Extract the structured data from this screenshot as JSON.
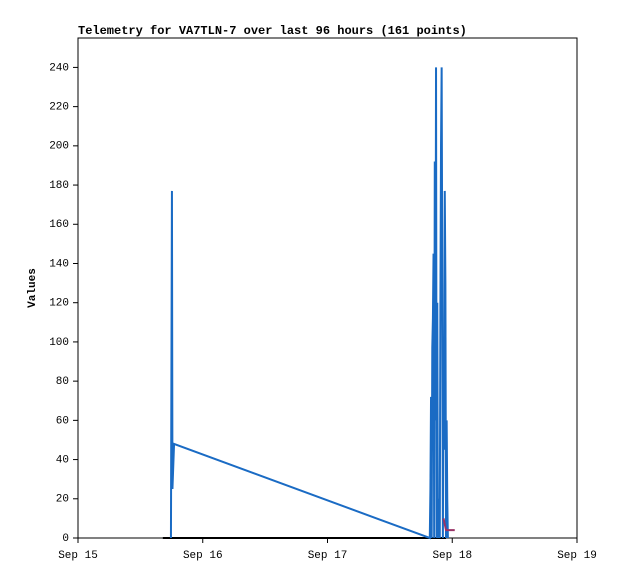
{
  "chart_data": {
    "type": "line",
    "title": "Telemetry for VA7TLN-7 over last 96 hours (161 points)",
    "y_label": "Values",
    "xlim": [
      0,
      4
    ],
    "xticks": [
      {
        "value": 0,
        "label": "Sep 15"
      },
      {
        "value": 1,
        "label": "Sep 16"
      },
      {
        "value": 2,
        "label": "Sep 17"
      },
      {
        "value": 3,
        "label": "Sep 18"
      },
      {
        "value": 4,
        "label": "Sep 19"
      }
    ],
    "ylim": [
      0,
      255
    ],
    "yticks": [
      0,
      20,
      40,
      60,
      80,
      100,
      120,
      140,
      160,
      180,
      200,
      220,
      240
    ],
    "grid": false,
    "series": [
      {
        "color": "#000000",
        "x": [
          0.68,
          2.82,
          2.88,
          2.95
        ],
        "values": [
          0,
          0,
          0,
          0
        ]
      },
      {
        "color": "#1a6bc4",
        "x": [
          0.745,
          0.753,
          0.757,
          0.77,
          2.82,
          2.825,
          2.83,
          2.835,
          2.84,
          2.845,
          2.85,
          2.855,
          2.86,
          2.865,
          2.87,
          2.875,
          2.88,
          2.885,
          2.89,
          2.9,
          2.905,
          2.91,
          2.915,
          2.92,
          2.925,
          2.93,
          2.935,
          2.94,
          2.945,
          2.95,
          2.955,
          2.96,
          2.965
        ],
        "values": [
          0,
          177,
          25,
          48,
          0,
          25,
          72,
          0,
          97,
          112,
          145,
          0,
          192,
          60,
          240,
          0,
          120,
          0,
          20,
          0,
          120,
          200,
          240,
          130,
          0,
          97,
          45,
          177,
          130,
          0,
          60,
          20,
          0
        ]
      },
      {
        "color": "#993366",
        "x": [
          2.93,
          2.95,
          3.02
        ],
        "values": [
          10,
          4,
          4
        ]
      }
    ]
  }
}
